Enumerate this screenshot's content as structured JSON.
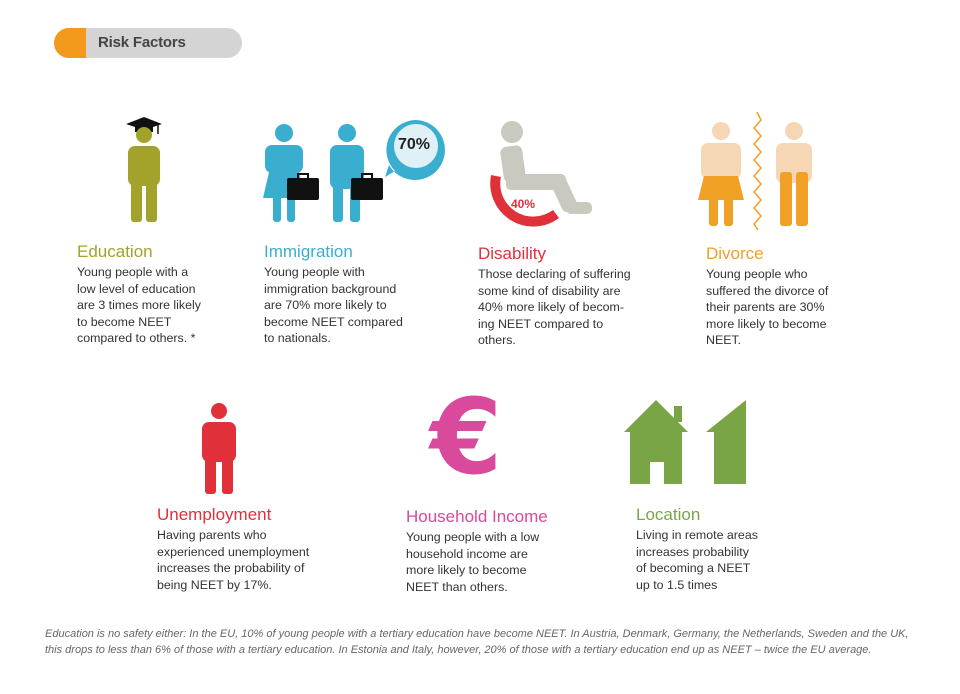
{
  "header": {
    "title": "Risk Factors"
  },
  "colors": {
    "education": "#a3a22b",
    "immigration": "#3aaecf",
    "disability": "#e0303a",
    "divorce": "#f0a024",
    "unemployment": "#e0303a",
    "household_income": "#d9499c",
    "location": "#7aa547",
    "header_accent": "#f39a1d"
  },
  "factors": {
    "education": {
      "title": "Education",
      "text": "Young people with a\nlow level of education\nare 3 times more likely\nto become NEET\ncompared to others. *"
    },
    "immigration": {
      "title": "Immigration",
      "text": "Young people with\nimmigration background\nare 70% more likely to\nbecome NEET compared\nto nationals.",
      "badge": "70%"
    },
    "disability": {
      "title": "Disability",
      "text": "Those declaring of suffering\nsome kind of disability are\n40% more likely of becom-\ning NEET compared to\nothers.",
      "badge": "40%"
    },
    "divorce": {
      "title": "Divorce",
      "text": "Young people who\nsuffered the divorce of\ntheir parents are 30%\nmore likely to become\nNEET."
    },
    "unemployment": {
      "title": "Unemployment",
      "text": "Having parents who\nexperienced unemployment\nincreases the probability of\nbeing NEET by 17%."
    },
    "household_income": {
      "title": "Household Income",
      "text": "Young people with a low\nhousehold income are\nmore likely to become\nNEET than others.",
      "symbol": "€"
    },
    "location": {
      "title": "Location",
      "text": "Living in remote areas\nincreases probability\nof becoming a NEET\nup to 1.5 times"
    }
  },
  "footnote": "Education is no safety either: In the EU, 10% of young people with a tertiary education have become NEET. In Austria, Denmark, Germany, the Netherlands, Sweden and the UK, this drops to less than 6% of those with a tertiary education. In Estonia and Italy, however, 20% of those with a tertiary education end up as NEET – twice the EU average.",
  "icons": {
    "education": "graduate-person-icon",
    "immigration": "travelers-with-suitcases-icon",
    "disability": "wheelchair-icon",
    "divorce": "separated-couple-icon",
    "unemployment": "person-icon",
    "household_income": "euro-icon",
    "location": "houses-icon"
  }
}
